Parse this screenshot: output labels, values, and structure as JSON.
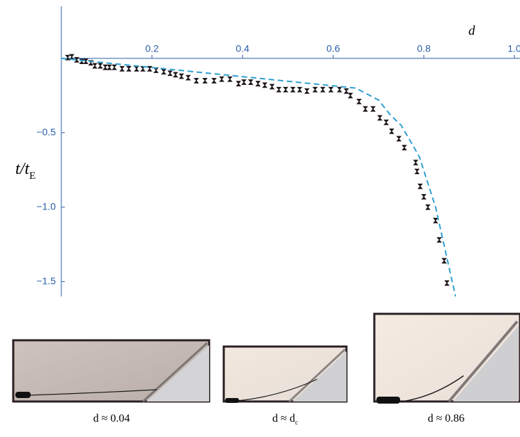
{
  "chart_data": {
    "type": "scatter",
    "xlabel": "d",
    "ylabel": {
      "main": "t/t",
      "sub": "E"
    },
    "xlim": [
      0,
      1.01
    ],
    "ylim": [
      -1.6,
      0.35
    ],
    "xticks": [
      0.2,
      0.4,
      0.6,
      0.8,
      {
        "value": 1.0,
        "label": "1.0"
      }
    ],
    "yticks": [
      {
        "value": -0.5,
        "label": "−0.5"
      },
      {
        "value": -1.0,
        "label": "−1.0"
      },
      {
        "value": -1.5,
        "label": "−1.5"
      }
    ],
    "axis_color": "#2a5ea8",
    "series": [
      {
        "type": "scatter",
        "color": "#1c1418",
        "x": [
          0.014,
          0.023,
          0.034,
          0.045,
          0.054,
          0.065,
          0.074,
          0.086,
          0.097,
          0.106,
          0.117,
          0.134,
          0.149,
          0.166,
          0.18,
          0.195,
          0.209,
          0.226,
          0.24,
          0.252,
          0.265,
          0.28,
          0.298,
          0.317,
          0.337,
          0.354,
          0.372,
          0.391,
          0.403,
          0.418,
          0.434,
          0.449,
          0.465,
          0.48,
          0.495,
          0.511,
          0.526,
          0.542,
          0.56,
          0.577,
          0.595,
          0.614,
          0.629,
          0.638,
          0.657,
          0.671,
          0.688,
          0.703,
          0.717,
          0.729,
          0.745,
          0.757,
          0.782,
          0.785,
          0.792,
          0.8,
          0.809,
          0.826,
          0.834,
          0.845,
          0.851
        ],
        "values": [
          0.005,
          0.01,
          -0.01,
          -0.02,
          -0.02,
          -0.03,
          -0.05,
          -0.05,
          -0.06,
          -0.06,
          -0.06,
          -0.07,
          -0.07,
          -0.07,
          -0.07,
          -0.07,
          -0.08,
          -0.09,
          -0.1,
          -0.11,
          -0.12,
          -0.13,
          -0.15,
          -0.15,
          -0.15,
          -0.14,
          -0.14,
          -0.17,
          -0.16,
          -0.16,
          -0.17,
          -0.18,
          -0.19,
          -0.21,
          -0.21,
          -0.21,
          -0.21,
          -0.22,
          -0.21,
          -0.21,
          -0.21,
          -0.21,
          -0.22,
          -0.25,
          -0.29,
          -0.34,
          -0.34,
          -0.4,
          -0.43,
          -0.49,
          -0.54,
          -0.6,
          -0.7,
          -0.76,
          -0.86,
          -0.93,
          -1.0,
          -1.09,
          -1.22,
          -1.36,
          -1.51
        ]
      },
      {
        "type": "line",
        "style": "dashed",
        "color": "#2e9fd0",
        "x": [
          0,
          0.65,
          0.7,
          0.726,
          0.75,
          0.79,
          0.826,
          0.848,
          0.87
        ],
        "values": [
          0,
          -0.2,
          -0.28,
          -0.38,
          -0.45,
          -0.66,
          -1.0,
          -1.3,
          -1.6
        ]
      }
    ]
  },
  "photos": [
    {
      "caption": "d ≈ 0.04"
    },
    {
      "caption": "d ≈ d",
      "caption_sub": "c"
    },
    {
      "caption": "d ≈ 0.86"
    }
  ]
}
